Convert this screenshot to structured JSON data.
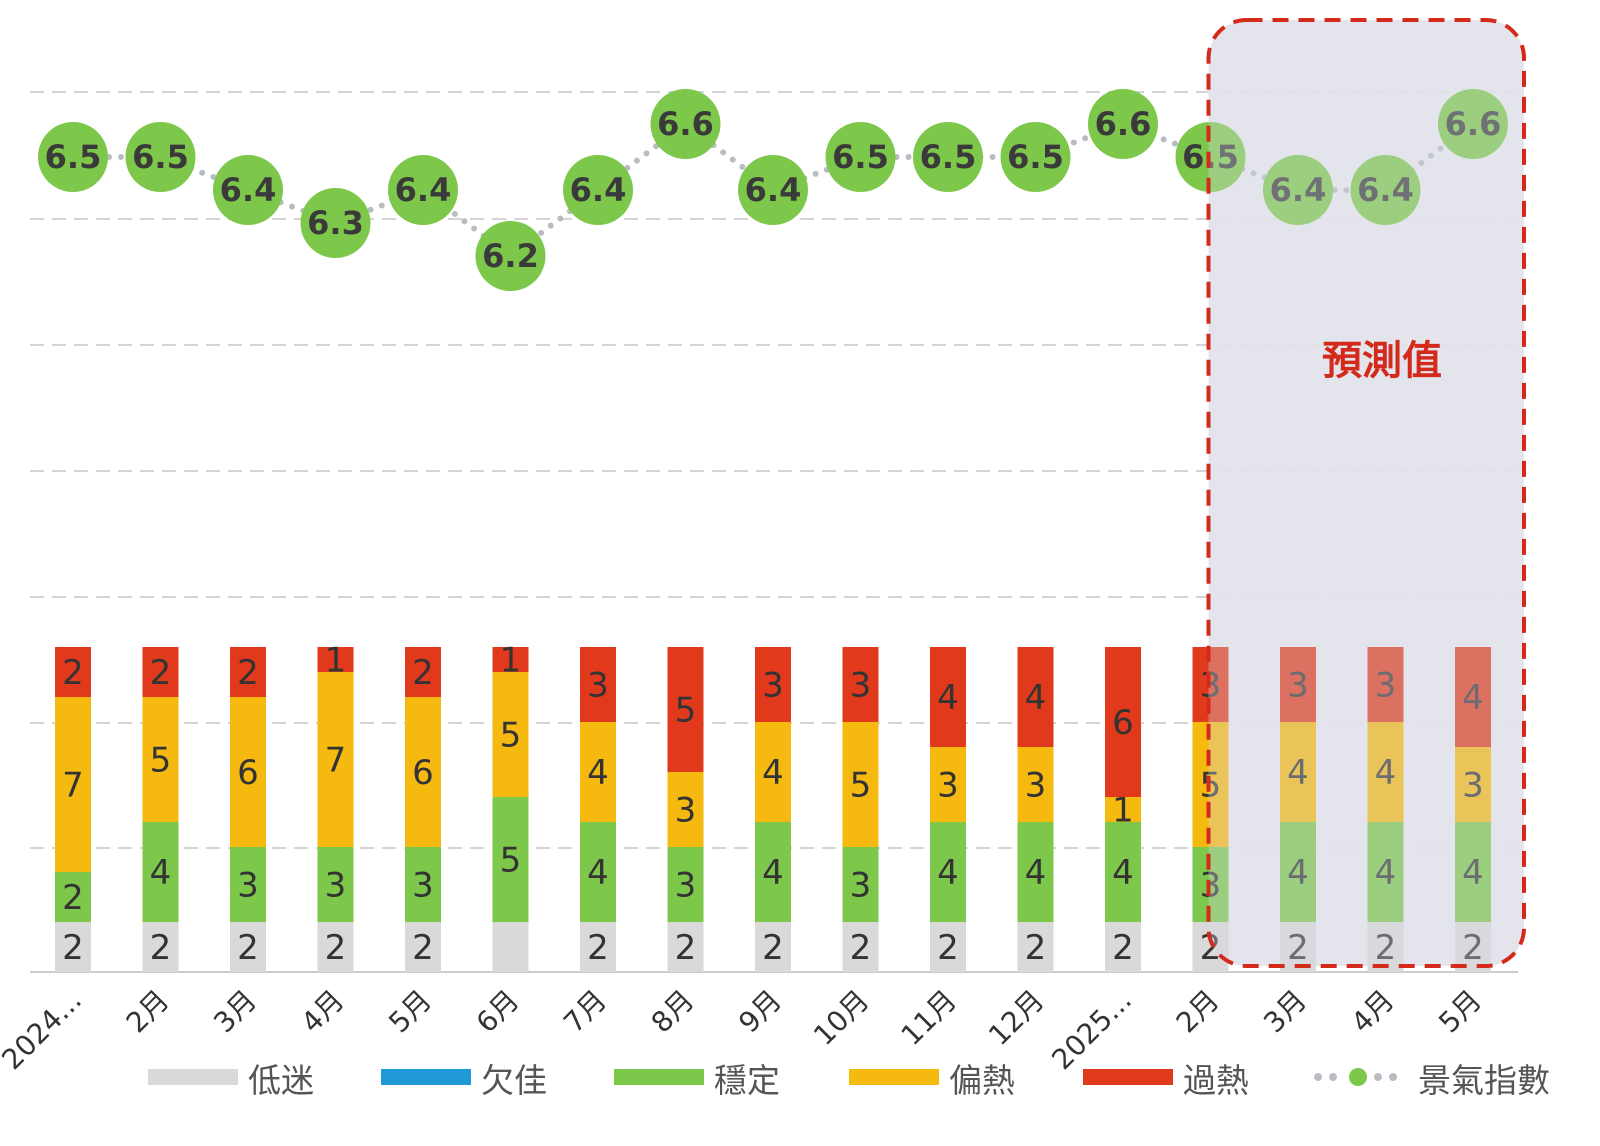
{
  "chart_data": {
    "type": "bar",
    "stacked": true,
    "categories": [
      "2024...",
      "2月",
      "3月",
      "4月",
      "5月",
      "6月",
      "7月",
      "8月",
      "9月",
      "10月",
      "11月",
      "12月",
      "2025...",
      "2月",
      "3月",
      "4月",
      "5月"
    ],
    "series": [
      {
        "name": "低迷",
        "color": "#d9d9d9",
        "values": [
          2,
          2,
          2,
          2,
          2,
          2,
          2,
          2,
          2,
          2,
          2,
          2,
          2,
          2,
          2,
          2,
          2
        ],
        "labels": [
          "2",
          "2",
          "2",
          "2",
          "2",
          "",
          "2",
          "2",
          "2",
          "2",
          "2",
          "2",
          "2",
          "2",
          "2",
          "2",
          "2"
        ]
      },
      {
        "name": "欠佳",
        "color": "#1f9ad6",
        "values": [
          0,
          0,
          0,
          0,
          0,
          0,
          0,
          0,
          0,
          0,
          0,
          0,
          0,
          0,
          0,
          0,
          0
        ],
        "labels": [
          "",
          "",
          "",
          "",
          "",
          "",
          "",
          "",
          "",
          "",
          "",
          "",
          "",
          "",
          "",
          "",
          ""
        ]
      },
      {
        "name": "穩定",
        "color": "#7dc84a",
        "values": [
          2,
          4,
          3,
          3,
          3,
          5,
          4,
          3,
          4,
          3,
          4,
          4,
          4,
          3,
          4,
          4,
          4
        ],
        "labels": [
          "2",
          "4",
          "3",
          "3",
          "3",
          "5",
          "4",
          "3",
          "4",
          "3",
          "4",
          "4",
          "4",
          "3",
          "4",
          "4",
          "4"
        ]
      },
      {
        "name": "偏熱",
        "color": "#f5b90f",
        "values": [
          7,
          5,
          6,
          7,
          6,
          5,
          4,
          3,
          4,
          5,
          3,
          3,
          1,
          5,
          4,
          4,
          3
        ],
        "labels": [
          "7",
          "5",
          "6",
          "7",
          "6",
          "5",
          "4",
          "3",
          "4",
          "5",
          "3",
          "3",
          "1",
          "5",
          "4",
          "4",
          "3"
        ]
      },
      {
        "name": "過熱",
        "color": "#e0391c",
        "values": [
          2,
          2,
          2,
          1,
          2,
          1,
          3,
          5,
          3,
          3,
          4,
          4,
          6,
          3,
          3,
          3,
          4
        ],
        "labels": [
          "2",
          "2",
          "2",
          "1",
          "2",
          "1",
          "3",
          "5",
          "3",
          "3",
          "4",
          "4",
          "6",
          "3",
          "3",
          "3",
          "4"
        ]
      }
    ],
    "line_series": {
      "name": "景氣指數",
      "color": "#7dc84a",
      "values": [
        6.5,
        6.5,
        6.4,
        6.3,
        6.4,
        6.2,
        6.4,
        6.6,
        6.4,
        6.5,
        6.5,
        6.5,
        6.6,
        6.5,
        6.4,
        6.4,
        6.6
      ],
      "labels": [
        "6.5",
        "6.5",
        "6.4",
        "6.3",
        "6.4",
        "6.2",
        "6.4",
        "6.6",
        "6.4",
        "6.5",
        "6.5",
        "6.5",
        "6.6",
        "6.5",
        "6.4",
        "6.4",
        "6.6"
      ]
    },
    "forecast": {
      "label": "預測值",
      "categories": [
        "2月",
        "3月",
        "4月",
        "5月"
      ]
    },
    "legend": {
      "position": "bottom",
      "items": [
        "低迷",
        "欠佳",
        "穩定",
        "偏熱",
        "過熱",
        "景氣指數"
      ]
    },
    "grid": true
  }
}
